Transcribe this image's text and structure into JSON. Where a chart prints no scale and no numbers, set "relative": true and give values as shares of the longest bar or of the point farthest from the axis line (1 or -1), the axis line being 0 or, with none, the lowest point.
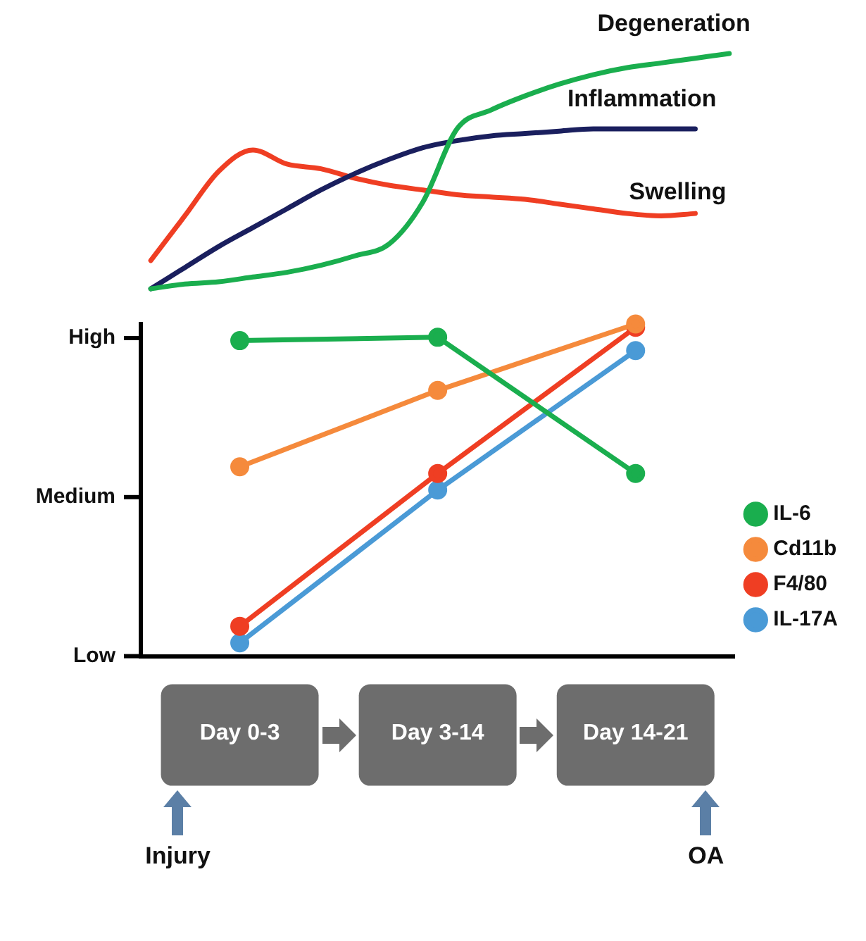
{
  "chart_data": [
    {
      "type": "line",
      "relative": true,
      "legend": false,
      "marker": "none",
      "categories": [
        null,
        null,
        null,
        null,
        null,
        null,
        null,
        null,
        null,
        null,
        null,
        null,
        null,
        null,
        null,
        null,
        null,
        null
      ],
      "series": [
        {
          "name": "Degeneration",
          "color": "#1aae4e",
          "values": [
            0,
            0.02,
            0.03,
            0.05,
            0.07,
            0.1,
            0.14,
            0.19,
            0.37,
            0.68,
            0.76,
            0.82,
            0.87,
            0.91,
            0.94,
            0.96,
            0.98,
            1
          ]
        },
        {
          "name": "Inflammation",
          "color": "#1a1f5e",
          "values": [
            0,
            0.09,
            0.18,
            0.26,
            0.34,
            0.42,
            0.49,
            0.55,
            0.6,
            0.63,
            0.65,
            0.66,
            0.67,
            0.68,
            0.68,
            0.68,
            0.68,
            null
          ]
        },
        {
          "name": "Swelling",
          "color": "#ef3e23",
          "values": [
            0.12,
            0.31,
            0.5,
            0.59,
            0.53,
            0.51,
            0.47,
            0.44,
            0.42,
            0.4,
            0.39,
            0.38,
            0.36,
            0.34,
            0.32,
            0.31,
            0.32,
            null
          ]
        }
      ]
    },
    {
      "type": "line",
      "relative": true,
      "legend": "right",
      "marker": "circle",
      "categories": [
        "Day 0-3",
        "Day 3-14",
        "Day 14-21"
      ],
      "annotations": [
        "High",
        "Medium",
        "Low",
        "Injury",
        "OA"
      ],
      "series": [
        {
          "name": "IL-6",
          "color": "#1aae4e",
          "values": [
            0.95,
            0.96,
            0.55
          ]
        },
        {
          "name": "Cd11b",
          "color": "#f58a3c",
          "values": [
            0.57,
            0.8,
            1
          ]
        },
        {
          "name": "F4/80",
          "color": "#ef3e23",
          "values": [
            0.09,
            0.55,
            0.99
          ]
        },
        {
          "name": "IL-17A",
          "color": "#4a9ad6",
          "values": [
            0.04,
            0.5,
            0.92
          ]
        }
      ]
    }
  ]
}
